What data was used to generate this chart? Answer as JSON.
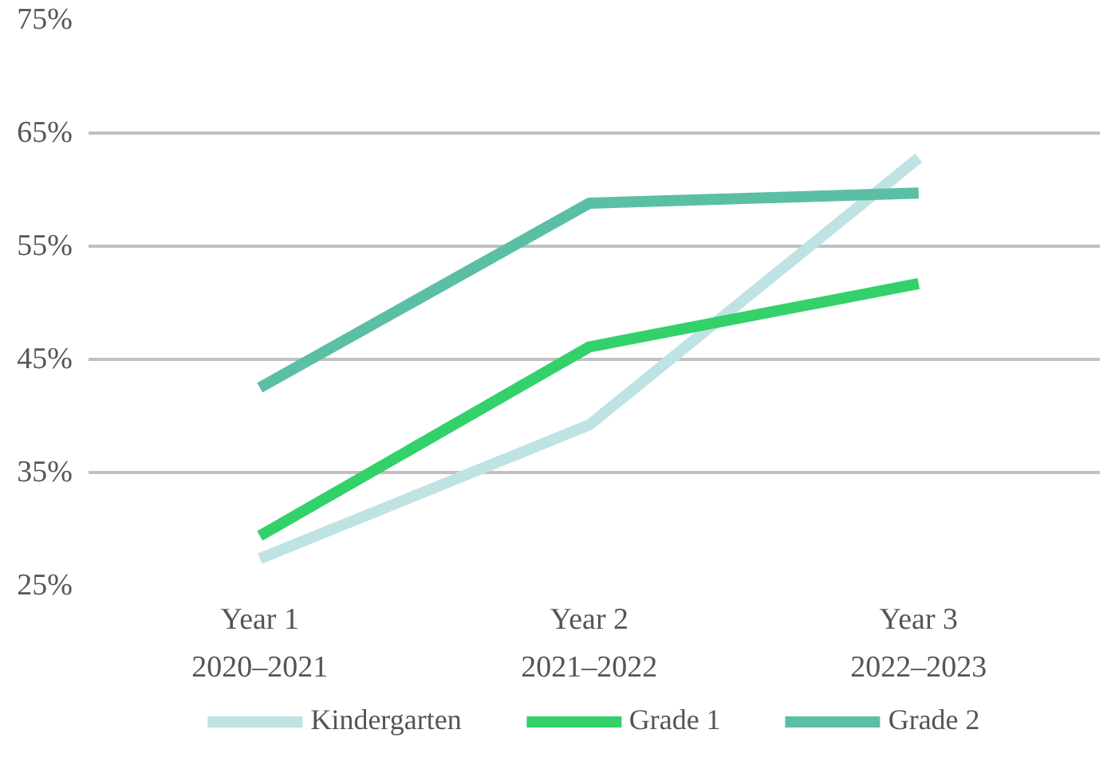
{
  "chart_data": {
    "type": "line",
    "categories": [
      "Year 1\n2020–2021",
      "Year 2\n2021–2022",
      "Year 3\n2022–2023"
    ],
    "series": [
      {
        "name": "Kindergarten",
        "color": "#bfe3e3",
        "values": [
          27.4,
          39.2,
          62.8
        ]
      },
      {
        "name": "Grade 1",
        "color": "#33d16a",
        "values": [
          29.4,
          46.1,
          51.7
        ]
      },
      {
        "name": "Grade 2",
        "color": "#5bbfa5",
        "values": [
          42.5,
          58.8,
          59.7
        ]
      }
    ],
    "ylim": [
      25,
      75
    ],
    "yticks": [
      {
        "value": 25,
        "label": "25%"
      },
      {
        "value": 35,
        "label": "35%"
      },
      {
        "value": 45,
        "label": "45%"
      },
      {
        "value": 55,
        "label": "55%"
      },
      {
        "value": 65,
        "label": "65%"
      },
      {
        "value": 75,
        "label": "75%"
      }
    ],
    "grid": "y",
    "legend": "bottom",
    "marker": "none",
    "line_style": "solid"
  }
}
